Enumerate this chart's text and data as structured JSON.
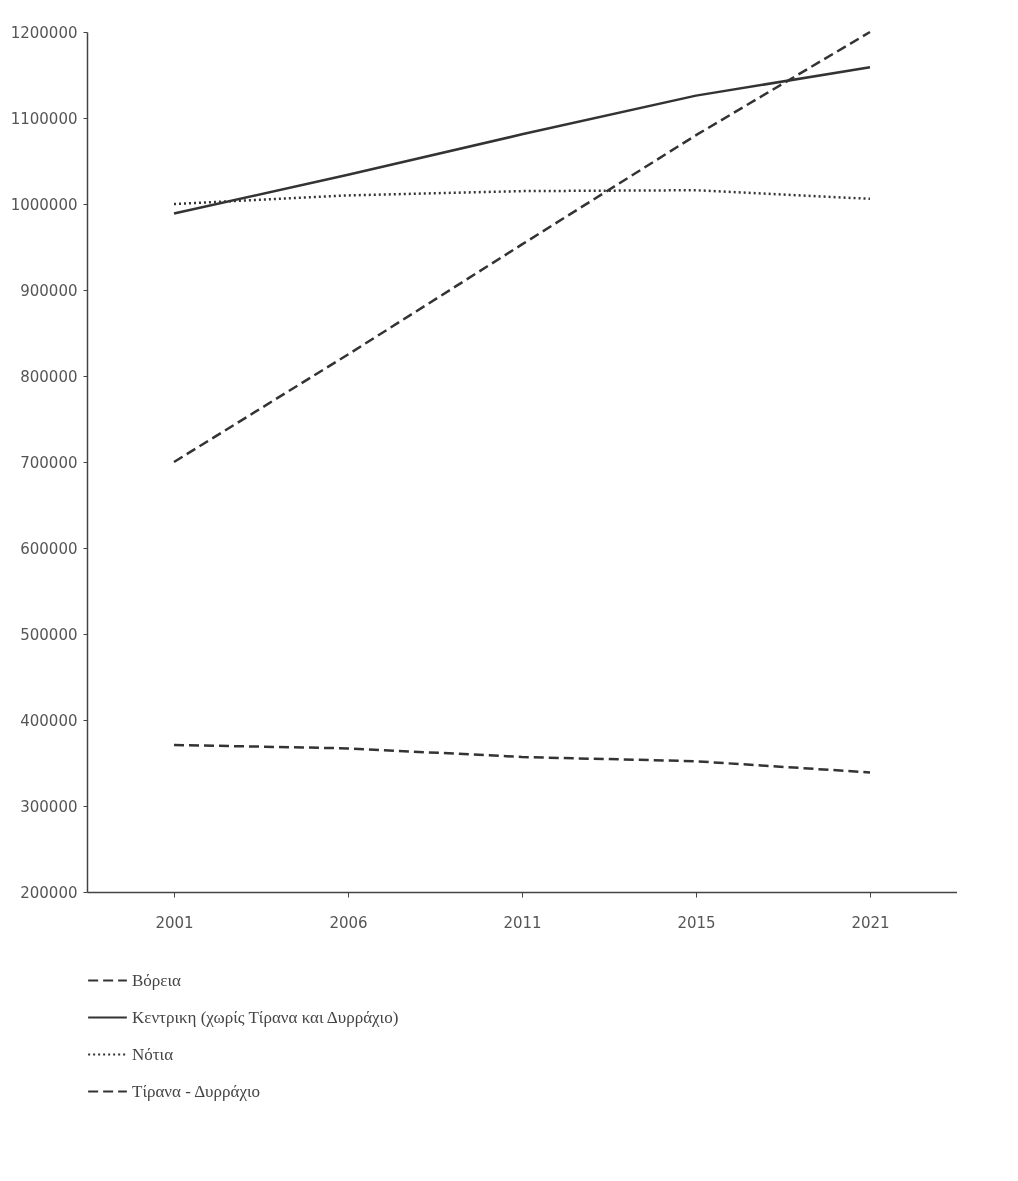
{
  "chart_data": {
    "type": "line",
    "categories": [
      "2001",
      "2006",
      "2011",
      "2015",
      "2021"
    ],
    "ylim": [
      200000,
      1200000
    ],
    "yticks": [
      200000,
      300000,
      400000,
      500000,
      600000,
      700000,
      800000,
      900000,
      1000000,
      1100000,
      1200000
    ],
    "grid": false,
    "legend": "bottom",
    "marker": "none",
    "series": [
      {
        "name": "Βόρεια",
        "color": "#333333",
        "line_style": "dashed",
        "values": [
          371000,
          367000,
          357000,
          352000,
          339000
        ]
      },
      {
        "name": "Κεντρικη (χωρίς Τίρανα και Δυρράχιο)",
        "color": "#333333",
        "line_style": "solid",
        "values": [
          989000,
          1034000,
          1081000,
          1126000,
          1159000
        ]
      },
      {
        "name": "Νότια",
        "color": "#333333",
        "line_style": "dotted",
        "values": [
          1000000,
          1010000,
          1015000,
          1016000,
          1006000
        ]
      },
      {
        "name": "Τίρανα - Δυρράχιο",
        "color": "#333333",
        "line_style": "dashed",
        "values": [
          700000,
          825000,
          953000,
          1080000,
          1200000
        ]
      }
    ]
  }
}
